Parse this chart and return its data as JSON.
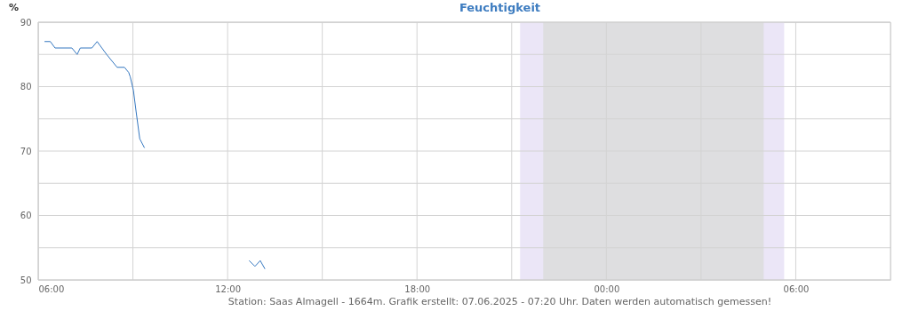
{
  "chart_data": {
    "type": "line",
    "title": "Feuchtigkeit",
    "ylabel": "%",
    "x": [
      "2025-06-06T06:12",
      "2025-06-06T06:23",
      "2025-06-06T06:32",
      "2025-06-06T07:04",
      "2025-06-06T07:14",
      "2025-06-06T07:20",
      "2025-06-06T07:42",
      "2025-06-06T07:52",
      "2025-06-06T08:10",
      "2025-06-06T08:30",
      "2025-06-06T08:44",
      "2025-06-06T08:52",
      "2025-06-06T08:55",
      "2025-06-06T09:01",
      "2025-06-06T09:06",
      "2025-06-06T09:13",
      "2025-06-06T09:22",
      "2025-06-06T11:00",
      "2025-06-06T12:41",
      "2025-06-06T12:52",
      "2025-06-06T13:02",
      "2025-06-06T13:11"
    ],
    "series": [
      {
        "color": "#3477c0",
        "values": [
          87,
          87,
          86,
          86,
          85,
          86,
          86,
          87,
          85,
          83,
          83,
          82.2,
          81.5,
          79.4,
          76.2,
          71.9,
          70.5,
          null,
          53,
          52.1,
          53,
          51.7
        ]
      }
    ],
    "xlim": [
      "2025-06-06T06:00",
      "2025-06-07T09:00"
    ],
    "xticks": [
      {
        "value": "2025-06-06T06:00",
        "label": "06:00"
      },
      {
        "value": "2025-06-06T09:00",
        "label": null
      },
      {
        "value": "2025-06-06T12:00",
        "label": "12:00"
      },
      {
        "value": "2025-06-06T15:00",
        "label": null
      },
      {
        "value": "2025-06-06T18:00",
        "label": "18:00"
      },
      {
        "value": "2025-06-06T21:00",
        "label": null
      },
      {
        "value": "2025-06-07T00:00",
        "label": "00:00"
      },
      {
        "value": "2025-06-07T03:00",
        "label": null
      },
      {
        "value": "2025-06-07T06:00",
        "label": "06:00"
      }
    ],
    "ylim": [
      50,
      90
    ],
    "yticks": [
      50,
      {
        "value": 55,
        "label": null
      },
      60,
      {
        "value": 65,
        "label": null
      },
      70,
      {
        "value": 75,
        "label": null
      },
      80,
      {
        "value": 85,
        "label": null
      },
      90
    ],
    "bands": [
      {
        "axis": "x",
        "from": "2025-06-06T21:16",
        "to": "2025-06-07T05:38",
        "color": "#ebe6f7"
      },
      {
        "axis": "x",
        "from": "2025-06-06T22:00",
        "to": "2025-06-07T04:59",
        "color": "#dedee0"
      }
    ],
    "grid": true,
    "annotations": [
      "Station: Saas Almagell - 1664m. Grafik erstellt: 07.06.2025 - 07:20 Uhr. Daten werden automatisch gemessen!"
    ]
  }
}
